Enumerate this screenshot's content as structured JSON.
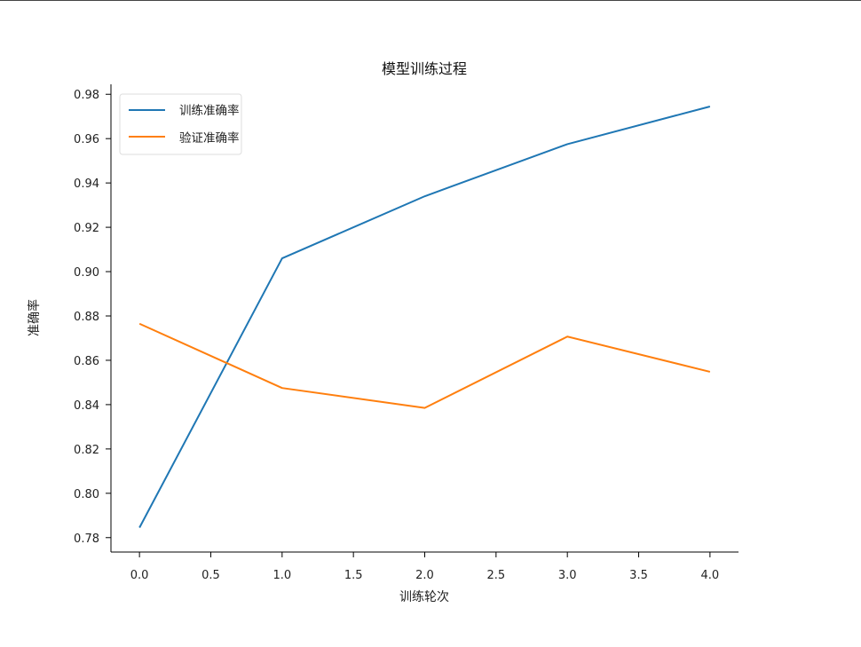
{
  "chart_data": {
    "type": "line",
    "title": "模型训练过程",
    "xlabel": "训练轮次",
    "ylabel": "准确率",
    "x": [
      0,
      1,
      2,
      3,
      4
    ],
    "xlim": [
      -0.2,
      4.2
    ],
    "ylim": [
      0.7735,
      0.9845
    ],
    "xticks": [
      "0.0",
      "0.5",
      "1.0",
      "1.5",
      "2.0",
      "2.5",
      "3.0",
      "3.5",
      "4.0"
    ],
    "yticks": [
      "0.78",
      "0.80",
      "0.82",
      "0.84",
      "0.86",
      "0.88",
      "0.90",
      "0.92",
      "0.94",
      "0.96",
      "0.98"
    ],
    "grid": false,
    "legend_position": "top-left",
    "series": [
      {
        "name": "训练准确率",
        "color": "#1f77b4",
        "values": [
          0.7845,
          0.906,
          0.934,
          0.9575,
          0.9745
        ]
      },
      {
        "name": "验证准确率",
        "color": "#ff7f0e",
        "values": [
          0.8765,
          0.8475,
          0.8385,
          0.8707,
          0.8548
        ]
      }
    ]
  }
}
